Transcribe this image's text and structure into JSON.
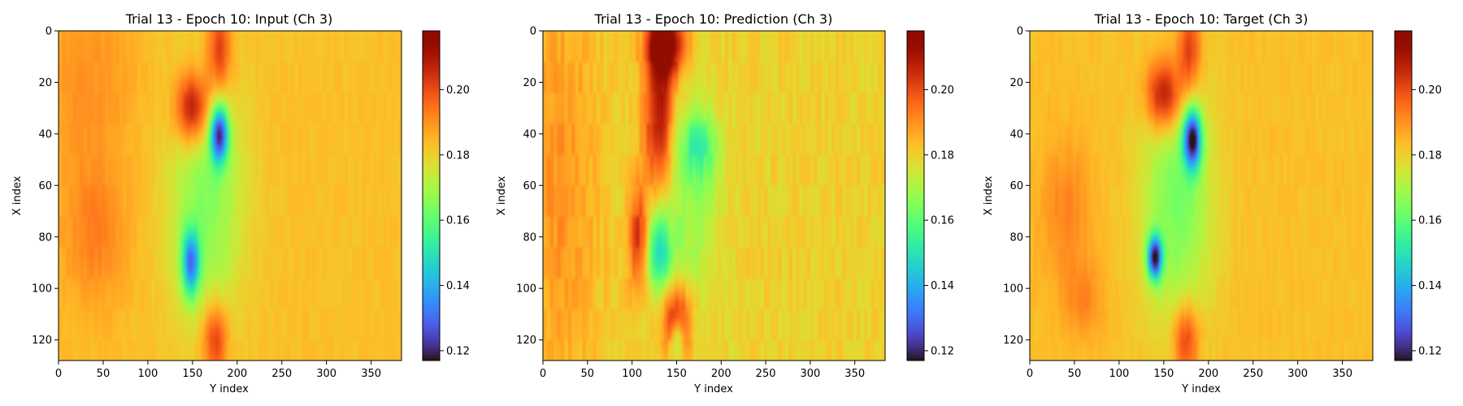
{
  "chart_data": [
    {
      "type": "heatmap",
      "title": "Trial 13 - Epoch 10: Input (Ch 3)",
      "xlabel": "Y index",
      "ylabel": "X index",
      "xlim": [
        0,
        384
      ],
      "ylim": [
        128,
        0
      ],
      "xticks": [
        0,
        50,
        100,
        150,
        200,
        250,
        300,
        350
      ],
      "yticks": [
        0,
        20,
        40,
        60,
        80,
        100,
        120
      ],
      "colormap": "turbo",
      "color_range": [
        0.117,
        0.218
      ],
      "colorbar_ticks": [
        0.12,
        0.14,
        0.16,
        0.18,
        0.2
      ],
      "background_value": 0.183,
      "features": [
        {
          "kind": "warm",
          "x": 150,
          "y": 30,
          "sx": 14,
          "sy": 10,
          "value": 0.215
        },
        {
          "kind": "warm",
          "x": 180,
          "y": 8,
          "sx": 10,
          "sy": 12,
          "value": 0.205
        },
        {
          "kind": "warm",
          "x": 175,
          "y": 120,
          "sx": 10,
          "sy": 10,
          "value": 0.205
        },
        {
          "kind": "warm",
          "x": 40,
          "y": 80,
          "sx": 25,
          "sy": 20,
          "value": 0.192
        },
        {
          "kind": "warm",
          "x": 30,
          "y": 20,
          "sx": 40,
          "sy": 30,
          "value": 0.19
        },
        {
          "kind": "cool",
          "x": 180,
          "y": 40,
          "sx": 7,
          "sy": 8,
          "value": 0.13
        },
        {
          "kind": "cool",
          "x": 148,
          "y": 90,
          "sx": 7,
          "sy": 9,
          "value": 0.14
        },
        {
          "kind": "cool",
          "x": 165,
          "y": 65,
          "sx": 30,
          "sy": 35,
          "value": 0.165
        }
      ]
    },
    {
      "type": "heatmap",
      "title": "Trial 13 - Epoch 10: Prediction (Ch 3)",
      "xlabel": "Y index",
      "ylabel": "X index",
      "xlim": [
        0,
        384
      ],
      "ylim": [
        128,
        0
      ],
      "xticks": [
        0,
        50,
        100,
        150,
        200,
        250,
        300,
        350
      ],
      "yticks": [
        0,
        20,
        40,
        60,
        80,
        100,
        120
      ],
      "colormap": "turbo",
      "color_range": [
        0.117,
        0.218
      ],
      "colorbar_ticks": [
        0.12,
        0.14,
        0.16,
        0.18,
        0.2
      ],
      "background_value": 0.18,
      "features": [
        {
          "kind": "warm",
          "x": 130,
          "y": 30,
          "sx": 12,
          "sy": 25,
          "value": 0.212
        },
        {
          "kind": "warm",
          "x": 140,
          "y": 5,
          "sx": 15,
          "sy": 8,
          "value": 0.215
        },
        {
          "kind": "warm",
          "x": 108,
          "y": 80,
          "sx": 8,
          "sy": 15,
          "value": 0.205
        },
        {
          "kind": "warm",
          "x": 150,
          "y": 112,
          "sx": 12,
          "sy": 10,
          "value": 0.21
        },
        {
          "kind": "warm",
          "x": 20,
          "y": 60,
          "sx": 30,
          "sy": 60,
          "value": 0.19
        },
        {
          "kind": "cool",
          "x": 130,
          "y": 85,
          "sx": 10,
          "sy": 12,
          "value": 0.15
        },
        {
          "kind": "cool",
          "x": 175,
          "y": 45,
          "sx": 15,
          "sy": 10,
          "value": 0.16
        },
        {
          "kind": "cool",
          "x": 160,
          "y": 70,
          "sx": 25,
          "sy": 30,
          "value": 0.168
        },
        {
          "kind": "cool",
          "x": 150,
          "y": 120,
          "sx": 5,
          "sy": 6,
          "value": 0.155
        }
      ]
    },
    {
      "type": "heatmap",
      "title": "Trial 13 - Epoch 10: Target (Ch 3)",
      "xlabel": "Y index",
      "ylabel": "X index",
      "xlim": [
        0,
        384
      ],
      "ylim": [
        128,
        0
      ],
      "xticks": [
        0,
        50,
        100,
        150,
        200,
        250,
        300,
        350
      ],
      "yticks": [
        0,
        20,
        40,
        60,
        80,
        100,
        120
      ],
      "colormap": "turbo",
      "color_range": [
        0.117,
        0.218
      ],
      "colorbar_ticks": [
        0.12,
        0.14,
        0.16,
        0.18,
        0.2
      ],
      "background_value": 0.183,
      "features": [
        {
          "kind": "warm",
          "x": 150,
          "y": 25,
          "sx": 14,
          "sy": 10,
          "value": 0.215
        },
        {
          "kind": "warm",
          "x": 178,
          "y": 8,
          "sx": 10,
          "sy": 12,
          "value": 0.205
        },
        {
          "kind": "warm",
          "x": 175,
          "y": 120,
          "sx": 10,
          "sy": 10,
          "value": 0.205
        },
        {
          "kind": "warm",
          "x": 40,
          "y": 70,
          "sx": 20,
          "sy": 20,
          "value": 0.192
        },
        {
          "kind": "warm",
          "x": 60,
          "y": 105,
          "sx": 15,
          "sy": 10,
          "value": 0.192
        },
        {
          "kind": "cool",
          "x": 182,
          "y": 42,
          "sx": 7,
          "sy": 8,
          "value": 0.125
        },
        {
          "kind": "cool",
          "x": 140,
          "y": 88,
          "sx": 6,
          "sy": 6,
          "value": 0.125
        },
        {
          "kind": "cool",
          "x": 165,
          "y": 65,
          "sx": 28,
          "sy": 35,
          "value": 0.163
        }
      ]
    }
  ]
}
